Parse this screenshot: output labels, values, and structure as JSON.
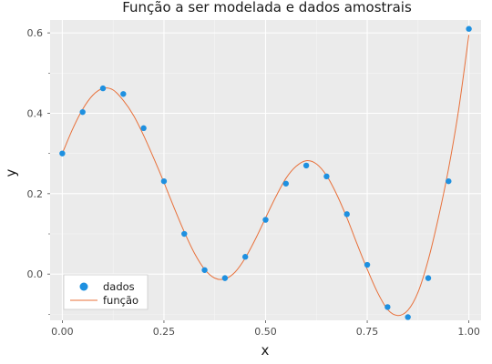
{
  "chart_data": {
    "type": "scatter",
    "title": "Função a ser modelada e dados amostrais",
    "xlabel": "x",
    "ylabel": "y",
    "xlim": [
      -0.03,
      1.03
    ],
    "ylim": [
      -0.115,
      0.632
    ],
    "xticks": [
      0.0,
      0.25,
      0.5,
      0.75,
      1.0
    ],
    "xtick_labels": [
      "0.00",
      "0.25",
      "0.50",
      "0.75",
      "1.00"
    ],
    "yticks": [
      0.0,
      0.2,
      0.4,
      0.6
    ],
    "ytick_labels": [
      "0.0",
      "0.2",
      "0.4",
      "0.6"
    ],
    "grid": true,
    "legend_position": "bottom-left",
    "series": [
      {
        "name": "dados",
        "kind": "scatter",
        "color": "#1e90e0",
        "x": [
          0.0,
          0.05,
          0.1,
          0.15,
          0.2,
          0.25,
          0.3,
          0.35,
          0.4,
          0.45,
          0.5,
          0.55,
          0.6,
          0.65,
          0.7,
          0.75,
          0.8,
          0.85,
          0.9,
          0.95,
          1.0
        ],
        "y": [
          0.3,
          0.403,
          0.462,
          0.448,
          0.363,
          0.231,
          0.1,
          0.01,
          -0.01,
          0.043,
          0.135,
          0.225,
          0.27,
          0.243,
          0.149,
          0.023,
          -0.082,
          -0.107,
          -0.01,
          0.231,
          0.61
        ]
      },
      {
        "name": "função",
        "kind": "line",
        "color": "#e8703a",
        "x": [
          0.0,
          0.025,
          0.05,
          0.075,
          0.1,
          0.125,
          0.15,
          0.175,
          0.2,
          0.225,
          0.25,
          0.275,
          0.3,
          0.325,
          0.35,
          0.375,
          0.4,
          0.425,
          0.45,
          0.475,
          0.5,
          0.525,
          0.55,
          0.575,
          0.6,
          0.625,
          0.65,
          0.675,
          0.7,
          0.725,
          0.75,
          0.775,
          0.8,
          0.825,
          0.85,
          0.875,
          0.9,
          0.925,
          0.95,
          0.975,
          1.0
        ],
        "y": [
          0.3,
          0.36,
          0.41,
          0.445,
          0.462,
          0.458,
          0.432,
          0.395,
          0.345,
          0.288,
          0.228,
          0.165,
          0.105,
          0.052,
          0.012,
          -0.01,
          -0.012,
          0.005,
          0.04,
          0.087,
          0.14,
          0.192,
          0.238,
          0.268,
          0.282,
          0.274,
          0.245,
          0.198,
          0.14,
          0.075,
          0.012,
          -0.045,
          -0.088,
          -0.103,
          -0.09,
          -0.045,
          0.035,
          0.14,
          0.262,
          0.41,
          0.595
        ]
      }
    ]
  },
  "legend": {
    "items": [
      "dados",
      "função"
    ]
  }
}
